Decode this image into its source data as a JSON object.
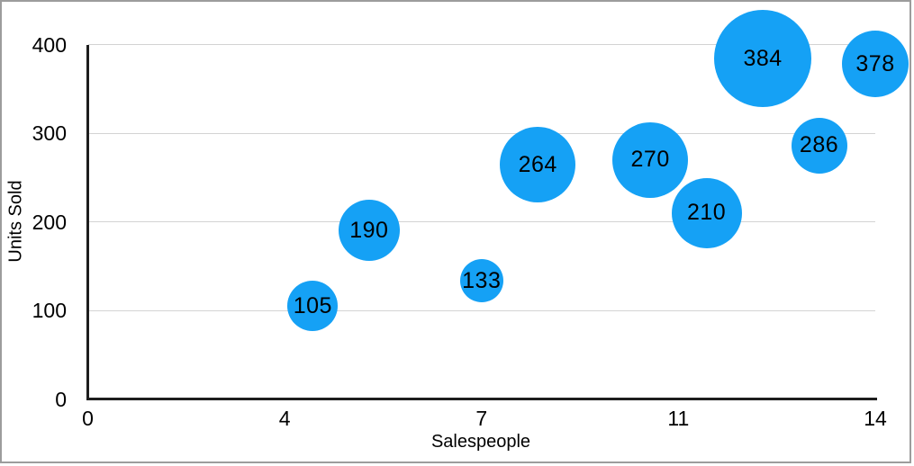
{
  "chart_data": {
    "type": "bubble",
    "title": "",
    "xlabel": "Salespeople",
    "ylabel": "Units Sold",
    "xlim": [
      0,
      14
    ],
    "ylim": [
      0,
      400
    ],
    "x_ticks": [
      {
        "pos": 0,
        "label": "0"
      },
      {
        "pos": 3.5,
        "label": "4"
      },
      {
        "pos": 7,
        "label": "7"
      },
      {
        "pos": 10.5,
        "label": "11"
      },
      {
        "pos": 14,
        "label": "14"
      }
    ],
    "y_ticks": [
      {
        "pos": 0,
        "label": "0"
      },
      {
        "pos": 100,
        "label": "100"
      },
      {
        "pos": 200,
        "label": "200"
      },
      {
        "pos": 300,
        "label": "300"
      },
      {
        "pos": 400,
        "label": "400"
      }
    ],
    "grid": "horizontal",
    "legend": "none",
    "points": [
      {
        "x": 4,
        "y": 105,
        "label": "105",
        "radius_px": 28
      },
      {
        "x": 5,
        "y": 190,
        "label": "190",
        "radius_px": 34
      },
      {
        "x": 7,
        "y": 133,
        "label": "133",
        "radius_px": 24
      },
      {
        "x": 8,
        "y": 264,
        "label": "264",
        "radius_px": 42
      },
      {
        "x": 10,
        "y": 270,
        "label": "270",
        "radius_px": 42
      },
      {
        "x": 11,
        "y": 210,
        "label": "210",
        "radius_px": 39
      },
      {
        "x": 12,
        "y": 384,
        "label": "384",
        "radius_px": 54
      },
      {
        "x": 13,
        "y": 286,
        "label": "286",
        "radius_px": 31
      },
      {
        "x": 14,
        "y": 378,
        "label": "378",
        "radius_px": 37
      }
    ],
    "colors": {
      "bubble_fill": "#15A1F5",
      "bubble_label": "#000000",
      "axis_line": "#1e1e1e",
      "gridline": "#d3d3d3",
      "tick_text": "#000000",
      "frame_border": "#9c9c9c",
      "background": "#ffffff"
    }
  }
}
